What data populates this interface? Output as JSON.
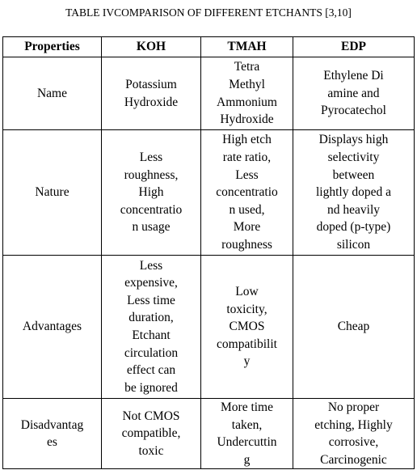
{
  "title": "TABLE IVCOMPARISON OF DIFFERENT ETCHANTS [3,10]",
  "table": {
    "header": [
      "Properties",
      "KOH",
      "TMAH",
      "EDP"
    ],
    "rows": [
      [
        [
          "Name"
        ],
        [
          "Potassium",
          "Hydroxide"
        ],
        [
          "Tetra",
          "Methyl",
          "Ammonium",
          "Hydroxide"
        ],
        [
          "Ethylene Di",
          "amine and",
          "Pyrocatechol"
        ]
      ],
      [
        [
          "Nature"
        ],
        [
          "Less",
          "roughness,",
          "High",
          "concentratio",
          "n usage"
        ],
        [
          "High etch",
          "rate ratio,",
          "Less",
          "concentratio",
          "n used,",
          "More",
          "roughness"
        ],
        [
          "Displays high",
          "selectivity",
          "between",
          "lightly doped a",
          "nd heavily",
          "doped (p-type)",
          "silicon"
        ]
      ],
      [
        [
          "Advantages"
        ],
        [
          "Less",
          "expensive,",
          "Less time",
          "duration,",
          "Etchant",
          "circulation",
          "effect can",
          "be ignored"
        ],
        [
          "Low",
          "toxicity,",
          "CMOS",
          "compatibilit",
          "y"
        ],
        [
          "Cheap"
        ]
      ],
      [
        [
          "Disadvantag",
          "es"
        ],
        [
          "Not CMOS",
          "compatible,",
          "toxic"
        ],
        [
          "More time",
          "taken,",
          "Undercuttin",
          "g"
        ],
        [
          "No proper",
          "etching, Highly",
          "corrosive,",
          "Carcinogenic"
        ]
      ]
    ]
  }
}
